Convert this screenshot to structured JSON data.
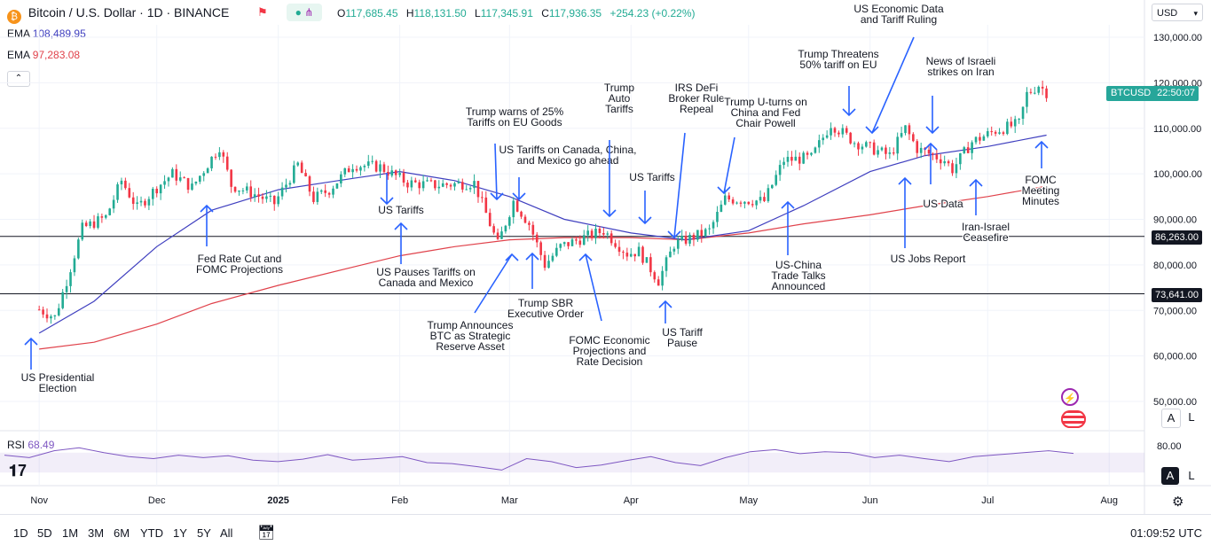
{
  "header": {
    "symbol": "Bitcoin / U.S. Dollar · 1D · BINANCE",
    "open_label": "O",
    "open": "117,685.45",
    "high_label": "H",
    "high": "118,131.50",
    "low_label": "L",
    "low": "117,345.91",
    "close_label": "C",
    "close": "117,936.35",
    "change": "+254.23 (+0.22%)",
    "ema1_label": "EMA",
    "ema1_value": "108,489.95",
    "ema2_label": "EMA",
    "ema2_value": "97,283.08",
    "currency": "USD"
  },
  "price_labels": {
    "symbol_tag": "BTCUSD",
    "countdown": "22:50:07",
    "line_high": "86,263.00",
    "line_low": "73,641.00"
  },
  "rsi": {
    "label": "RSI",
    "value": "68.49"
  },
  "bottom": {
    "ranges": [
      "1D",
      "5D",
      "1M",
      "3M",
      "6M",
      "YTD",
      "1Y",
      "5Y",
      "All"
    ],
    "clock": "01:09:52 UTC",
    "scale_a": "A",
    "scale_l": "L"
  },
  "colors": {
    "ema_fast": "#3f3fbf",
    "ema_slow": "#e0424b",
    "up": "#22ab94",
    "down": "#f23645",
    "rsi": "#7e57c2",
    "tag": "#26a69a",
    "arrow": "#2962ff"
  },
  "chart_data": {
    "type": "candlestick",
    "yaxis_ticks": [
      "130,000.00",
      "120,000.00",
      "110,000.00",
      "100,000.00",
      "90,000.00",
      "80,000.00",
      "70,000.00",
      "60,000.00",
      "50,000.00"
    ],
    "xaxis_ticks": [
      "Nov",
      "Dec",
      "2025",
      "Feb",
      "Mar",
      "Apr",
      "May",
      "Jun",
      "Jul",
      "Aug"
    ],
    "rsi_ticks": [
      "80.00"
    ],
    "price_range": [
      45000,
      135000
    ],
    "close_series": [
      [
        "2024-11-01",
        70200
      ],
      [
        "2024-11-05",
        68500
      ],
      [
        "2024-11-08",
        76500
      ],
      [
        "2024-11-12",
        88000
      ],
      [
        "2024-11-18",
        90500
      ],
      [
        "2024-11-22",
        98500
      ],
      [
        "2024-11-26",
        92500
      ],
      [
        "2024-12-01",
        97000
      ],
      [
        "2024-12-05",
        100000
      ],
      [
        "2024-12-10",
        97000
      ],
      [
        "2024-12-17",
        106000
      ],
      [
        "2024-12-20",
        97500
      ],
      [
        "2024-12-26",
        95500
      ],
      [
        "2024-12-31",
        93500
      ],
      [
        "2025-01-06",
        102000
      ],
      [
        "2025-01-10",
        94500
      ],
      [
        "2025-01-14",
        96500
      ],
      [
        "2025-01-20",
        102000
      ],
      [
        "2025-01-27",
        101500
      ],
      [
        "2025-02-03",
        98000
      ],
      [
        "2025-02-10",
        97500
      ],
      [
        "2025-02-20",
        98000
      ],
      [
        "2025-02-26",
        84500
      ],
      [
        "2025-03-02",
        94000
      ],
      [
        "2025-03-06",
        89000
      ],
      [
        "2025-03-10",
        80000
      ],
      [
        "2025-03-14",
        84000
      ],
      [
        "2025-03-20",
        86000
      ],
      [
        "2025-03-25",
        87500
      ],
      [
        "2025-03-31",
        82500
      ],
      [
        "2025-04-03",
        83000
      ],
      [
        "2025-04-08",
        76500
      ],
      [
        "2025-04-12",
        84500
      ],
      [
        "2025-04-21",
        87500
      ],
      [
        "2025-04-25",
        94500
      ],
      [
        "2025-05-05",
        94000
      ],
      [
        "2025-05-10",
        103000
      ],
      [
        "2025-05-17",
        103500
      ],
      [
        "2025-05-22",
        111000
      ],
      [
        "2025-05-28",
        107000
      ],
      [
        "2025-06-03",
        105000
      ],
      [
        "2025-06-06",
        104000
      ],
      [
        "2025-06-10",
        110000
      ],
      [
        "2025-06-13",
        105500
      ],
      [
        "2025-06-20",
        103000
      ],
      [
        "2025-06-22",
        101000
      ],
      [
        "2025-06-27",
        107000
      ],
      [
        "2025-07-03",
        109500
      ],
      [
        "2025-07-09",
        111000
      ],
      [
        "2025-07-11",
        117500
      ],
      [
        "2025-07-14",
        119500
      ],
      [
        "2025-07-16",
        117900
      ]
    ],
    "ema_fast_series": [
      [
        "2024-11-01",
        65000
      ],
      [
        "2024-11-15",
        72000
      ],
      [
        "2024-12-01",
        84000
      ],
      [
        "2024-12-15",
        92000
      ],
      [
        "2025-01-01",
        96500
      ],
      [
        "2025-01-20",
        99000
      ],
      [
        "2025-02-01",
        100500
      ],
      [
        "2025-02-15",
        98500
      ],
      [
        "2025-03-01",
        95000
      ],
      [
        "2025-03-15",
        90000
      ],
      [
        "2025-04-01",
        87000
      ],
      [
        "2025-04-15",
        85500
      ],
      [
        "2025-05-01",
        87500
      ],
      [
        "2025-05-15",
        93000
      ],
      [
        "2025-06-01",
        100500
      ],
      [
        "2025-06-15",
        104000
      ],
      [
        "2025-07-01",
        106000
      ],
      [
        "2025-07-16",
        108490
      ]
    ],
    "ema_slow_series": [
      [
        "2024-11-01",
        61500
      ],
      [
        "2024-11-15",
        63000
      ],
      [
        "2024-12-01",
        67000
      ],
      [
        "2024-12-15",
        71500
      ],
      [
        "2025-01-01",
        75500
      ],
      [
        "2025-01-20",
        79500
      ],
      [
        "2025-02-01",
        82000
      ],
      [
        "2025-02-15",
        84000
      ],
      [
        "2025-03-01",
        85500
      ],
      [
        "2025-03-15",
        86000
      ],
      [
        "2025-04-01",
        86000
      ],
      [
        "2025-04-15",
        85500
      ],
      [
        "2025-05-01",
        87000
      ],
      [
        "2025-05-15",
        89000
      ],
      [
        "2025-06-01",
        91000
      ],
      [
        "2025-06-15",
        93000
      ],
      [
        "2025-07-01",
        95000
      ],
      [
        "2025-07-16",
        97283
      ]
    ],
    "rsi_series": [
      65,
      60,
      74,
      80,
      70,
      62,
      58,
      65,
      60,
      64,
      55,
      52,
      57,
      66,
      55,
      58,
      62,
      50,
      48,
      42,
      35,
      58,
      52,
      40,
      45,
      54,
      62,
      50,
      44,
      60,
      72,
      76,
      68,
      72,
      70,
      60,
      65,
      58,
      52,
      62,
      66,
      70,
      74,
      68.49
    ],
    "horizontal_lines": [
      86263,
      73641
    ],
    "annotations": [
      {
        "lines": [
          "US Presidential",
          "Election"
        ],
        "date": "2024-11-05",
        "dir": "up"
      },
      {
        "lines": [
          "Fed Rate Cut and",
          "FOMC Projections"
        ],
        "date": "2024-12-18",
        "dir": "up"
      },
      {
        "lines": [
          "US Tariffs"
        ],
        "date": "2025-02-01",
        "dir": "down"
      },
      {
        "lines": [
          "US Pauses Tariffs on",
          "Canada and Mexico"
        ],
        "date": "2025-02-04",
        "dir": "up"
      },
      {
        "lines": [
          "Trump warns of 25%",
          "Tariffs on EU Goods"
        ],
        "date": "2025-02-26",
        "dir": "down"
      },
      {
        "lines": [
          "US Tariffs on Canada, China,",
          "and Mexico go ahead"
        ],
        "date": "2025-03-04",
        "dir": "down"
      },
      {
        "lines": [
          "Trump Announces",
          "BTC as Strategic",
          "Reserve Asset"
        ],
        "date": "2025-03-02",
        "dir": "up"
      },
      {
        "lines": [
          "Trump SBR",
          "Executive Order"
        ],
        "date": "2025-03-07",
        "dir": "up"
      },
      {
        "lines": [
          "FOMC Economic",
          "Projections and",
          "Rate Decision"
        ],
        "date": "2025-03-19",
        "dir": "up"
      },
      {
        "lines": [
          "Trump",
          "Auto",
          "Tariffs"
        ],
        "date": "2025-03-26",
        "dir": "down"
      },
      {
        "lines": [
          "US Tariffs"
        ],
        "date": "2025-04-02",
        "dir": "down"
      },
      {
        "lines": [
          "US Tariff",
          "Pause"
        ],
        "date": "2025-04-09",
        "dir": "up"
      },
      {
        "lines": [
          "IRS DeFi",
          "Broker Rule",
          "Repeal"
        ],
        "date": "2025-04-10",
        "dir": "down"
      },
      {
        "lines": [
          "Trump U-turns on",
          "China and Fed",
          "Chair Powell"
        ],
        "date": "2025-04-22",
        "dir": "down"
      },
      {
        "lines": [
          "US-China",
          "Trade Talks",
          "Announced"
        ],
        "date": "2025-05-07",
        "dir": "up"
      },
      {
        "lines": [
          "Trump Threatens",
          "50% tariff on EU"
        ],
        "date": "2025-05-23",
        "dir": "down"
      },
      {
        "lines": [
          "US Economic Data",
          "and Tariff Ruling"
        ],
        "date": "2025-05-29",
        "dir": "down"
      },
      {
        "lines": [
          "US Jobs Report"
        ],
        "date": "2025-06-06",
        "dir": "up"
      },
      {
        "lines": [
          "News of Israeli",
          "strikes on Iran"
        ],
        "date": "2025-06-13",
        "dir": "down"
      },
      {
        "lines": [
          "US Data"
        ],
        "date": "2025-06-12",
        "dir": "up"
      },
      {
        "lines": [
          "Iran-Israel",
          "Ceasefire"
        ],
        "date": "2025-06-24",
        "dir": "up"
      },
      {
        "lines": [
          "FOMC",
          "Meeting",
          "Minutes"
        ],
        "date": "2025-07-09",
        "dir": "up"
      }
    ]
  }
}
